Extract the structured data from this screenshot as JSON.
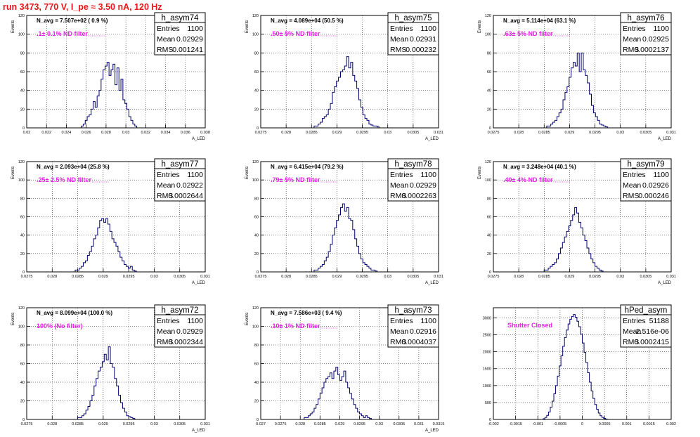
{
  "run_title": "run 3473,   770 V, I_pe ≈ 3.50 nA, 120 Hz",
  "chart_data": [
    {
      "type": "histogram",
      "name": "h_asym74",
      "annotation": "N_avg = 7.507e+02 ( 0.9 %)",
      "filter": ".1± 0.1% ND filter",
      "stats": {
        "entries": "1100",
        "mean": "0.02929",
        "rms": "0.001241"
      },
      "stat_labels": {
        "entries": "Entries",
        "mean": "Mean",
        "rms": "RMS"
      },
      "ylabel": "Events",
      "xlabel": "A_LED",
      "xlim": [
        0.02,
        0.038
      ],
      "ylim": [
        0,
        120
      ],
      "xticks": [
        0.02,
        0.022,
        0.024,
        0.026,
        0.028,
        0.03,
        0.032,
        0.034,
        0.036,
        0.038
      ],
      "xtick_labels": [
        "0.02",
        "0.022",
        "0.024",
        "0.026",
        "0.028",
        "0.03",
        "0.032",
        "0.034",
        "0.036",
        "0.038"
      ],
      "yticks": [
        0,
        20,
        40,
        60,
        80,
        100,
        120
      ],
      "ytick_labels": [
        "0",
        "20",
        "40",
        "60",
        "80",
        "100",
        "120"
      ],
      "bins": {
        "start": 0.0255,
        "width": 0.0002,
        "counts": [
          2,
          4,
          8,
          12,
          14,
          20,
          28,
          22,
          34,
          40,
          52,
          62,
          66,
          70,
          56,
          62,
          68,
          46,
          64,
          40,
          52,
          30,
          26,
          20,
          12,
          8,
          4,
          2
        ]
      }
    },
    {
      "type": "histogram",
      "name": "h_asym75",
      "annotation": "N_avg = 4.089e+04 (50.5 %)",
      "filter": ".50± 5% ND filter",
      "stats": {
        "entries": "1100",
        "mean": "0.02931",
        "rms": "0.000232"
      },
      "stat_labels": {
        "entries": "Entries",
        "mean": "Mean",
        "rms": "RMS"
      },
      "ylabel": "Events",
      "xlabel": "A_LED",
      "xlim": [
        0.0275,
        0.031
      ],
      "ylim": [
        0,
        120
      ],
      "xticks": [
        0.0275,
        0.028,
        0.0285,
        0.029,
        0.0295,
        0.03,
        0.0305,
        0.031
      ],
      "xtick_labels": [
        "0.0275",
        "0.028",
        "0.0285",
        "0.029",
        "0.0295",
        "0.03",
        "0.0305",
        "0.031"
      ],
      "yticks": [
        0,
        20,
        40,
        60,
        80,
        100,
        120
      ],
      "ytick_labels": [
        "0",
        "20",
        "40",
        "60",
        "80",
        "100",
        "120"
      ],
      "bins": {
        "start": 0.02855,
        "width": 4e-05,
        "counts": [
          2,
          2,
          4,
          6,
          10,
          12,
          14,
          20,
          26,
          38,
          44,
          50,
          54,
          60,
          62,
          66,
          76,
          64,
          70,
          56,
          50,
          42,
          30,
          22,
          14,
          10,
          8,
          4,
          3,
          2,
          2,
          1
        ]
      }
    },
    {
      "type": "histogram",
      "name": "h_asym76",
      "annotation": "N_avg = 5.114e+04 (63.1 %)",
      "filter": ".63± 5% ND filter",
      "stats": {
        "entries": "1100",
        "mean": "0.02925",
        "rms": "0.0002137"
      },
      "stat_labels": {
        "entries": "Entries",
        "mean": "Mean",
        "rms": "RMS"
      },
      "ylabel": "Events",
      "xlabel": "A_LED",
      "xlim": [
        0.0275,
        0.031
      ],
      "ylim": [
        0,
        120
      ],
      "xticks": [
        0.0275,
        0.028,
        0.0285,
        0.029,
        0.0295,
        0.03,
        0.0305,
        0.031
      ],
      "xtick_labels": [
        "0.0275",
        "0.028",
        "0.0285",
        "0.029",
        "0.0295",
        "0.03",
        "0.0305",
        "0.031"
      ],
      "yticks": [
        0,
        20,
        40,
        60,
        80,
        100,
        120
      ],
      "ytick_labels": [
        "0",
        "20",
        "40",
        "60",
        "80",
        "100",
        "120"
      ],
      "bins": {
        "start": 0.02855,
        "width": 4e-05,
        "counts": [
          2,
          2,
          4,
          6,
          8,
          12,
          16,
          20,
          30,
          38,
          44,
          54,
          64,
          70,
          66,
          80,
          60,
          80,
          62,
          56,
          48,
          36,
          24,
          16,
          12,
          8,
          4,
          3,
          2,
          1
        ]
      }
    },
    {
      "type": "histogram",
      "name": "h_asym77",
      "annotation": "N_avg = 2.093e+04 (25.8 %)",
      "filter": ".25± 2.5% ND filter",
      "stats": {
        "entries": "1100",
        "mean": "0.02922",
        "rms": "0.0002644"
      },
      "stat_labels": {
        "entries": "Entries",
        "mean": "Mean",
        "rms": "RMS"
      },
      "ylabel": "Events",
      "xlabel": "A_LED",
      "xlim": [
        0.0275,
        0.031
      ],
      "ylim": [
        0,
        120
      ],
      "xticks": [
        0.0275,
        0.028,
        0.0285,
        0.029,
        0.0295,
        0.03,
        0.0305,
        0.031
      ],
      "xtick_labels": [
        "0.0275",
        "0.028",
        "0.0285",
        "0.029",
        "0.0295",
        "0.03",
        "0.0305",
        "0.031"
      ],
      "yticks": [
        0,
        20,
        40,
        60,
        80,
        100,
        120
      ],
      "ytick_labels": [
        "0",
        "20",
        "40",
        "60",
        "80",
        "100",
        "120"
      ],
      "bins": {
        "start": 0.02845,
        "width": 4e-05,
        "counts": [
          2,
          2,
          4,
          6,
          10,
          12,
          18,
          22,
          28,
          36,
          40,
          48,
          56,
          58,
          54,
          58,
          52,
          44,
          36,
          32,
          28,
          22,
          16,
          12,
          8,
          6,
          4,
          6,
          2,
          1
        ]
      }
    },
    {
      "type": "histogram",
      "name": "h_asym78",
      "annotation": "N_avg = 6.415e+04 (79.2 %)",
      "filter": ".79± 5% ND filter",
      "stats": {
        "entries": "1100",
        "mean": "0.02929",
        "rms": "0.0002263"
      },
      "stat_labels": {
        "entries": "Entries",
        "mean": "Mean",
        "rms": "RMS"
      },
      "ylabel": "Events",
      "xlabel": "A_LED",
      "xlim": [
        0.0275,
        0.031
      ],
      "ylim": [
        0,
        120
      ],
      "xticks": [
        0.0275,
        0.028,
        0.0285,
        0.029,
        0.0295,
        0.03,
        0.0305,
        0.031
      ],
      "xtick_labels": [
        "0.0275",
        "0.028",
        "0.0285",
        "0.029",
        "0.0295",
        "0.03",
        "0.0305",
        "0.031"
      ],
      "yticks": [
        0,
        20,
        40,
        60,
        80,
        100,
        120
      ],
      "ytick_labels": [
        "0",
        "20",
        "40",
        "60",
        "80",
        "100",
        "120"
      ],
      "bins": {
        "start": 0.02855,
        "width": 4e-05,
        "counts": [
          2,
          2,
          4,
          6,
          8,
          12,
          16,
          22,
          30,
          40,
          48,
          56,
          62,
          70,
          74,
          66,
          70,
          58,
          56,
          46,
          36,
          28,
          20,
          14,
          10,
          8,
          6,
          4,
          2,
          2,
          1
        ]
      }
    },
    {
      "type": "histogram",
      "name": "h_asym79",
      "annotation": "N_avg = 3.248e+04 (40.1 %)",
      "filter": ".40± 4% ND filter",
      "stats": {
        "entries": "1100",
        "mean": "0.02926",
        "rms": "0.000246"
      },
      "stat_labels": {
        "entries": "Entries",
        "mean": "Mean",
        "rms": "RMS"
      },
      "ylabel": "Events",
      "xlabel": "A_LED",
      "xlim": [
        0.0275,
        0.031
      ],
      "ylim": [
        0,
        120
      ],
      "xticks": [
        0.0275,
        0.028,
        0.0285,
        0.029,
        0.0295,
        0.03,
        0.0305,
        0.031
      ],
      "xtick_labels": [
        "0.0275",
        "0.028",
        "0.0285",
        "0.029",
        "0.0295",
        "0.03",
        "0.0305",
        "0.031"
      ],
      "yticks": [
        0,
        20,
        40,
        60,
        80,
        100,
        120
      ],
      "ytick_labels": [
        "0",
        "20",
        "40",
        "60",
        "80",
        "100",
        "120"
      ],
      "bins": {
        "start": 0.0285,
        "width": 4e-05,
        "counts": [
          2,
          2,
          4,
          6,
          8,
          10,
          14,
          20,
          26,
          32,
          38,
          44,
          50,
          56,
          62,
          70,
          64,
          54,
          48,
          40,
          34,
          26,
          20,
          14,
          10,
          6,
          4,
          2,
          1
        ]
      }
    },
    {
      "type": "histogram",
      "name": "h_asym72",
      "annotation": "N_avg = 8.099e+04 (100.0 %)",
      "filter": "100% (No filter)",
      "stats": {
        "entries": "1100",
        "mean": "0.02929",
        "rms": "0.0002344"
      },
      "stat_labels": {
        "entries": "Entries",
        "mean": "Mean",
        "rms": "RMS"
      },
      "ylabel": "Events",
      "xlabel": "A_LED",
      "xlim": [
        0.0275,
        0.031
      ],
      "ylim": [
        0,
        120
      ],
      "xticks": [
        0.0275,
        0.028,
        0.0285,
        0.029,
        0.0295,
        0.03,
        0.0305,
        0.031
      ],
      "xtick_labels": [
        "0.0275",
        "0.028",
        "0.0285",
        "0.029",
        "0.0295",
        "0.03",
        "0.0305",
        "0.031"
      ],
      "yticks": [
        0,
        20,
        40,
        60,
        80,
        100,
        120
      ],
      "ytick_labels": [
        "0",
        "20",
        "40",
        "60",
        "80",
        "100",
        "120"
      ],
      "bins": {
        "start": 0.0285,
        "width": 4e-05,
        "counts": [
          2,
          2,
          4,
          6,
          10,
          14,
          20,
          26,
          36,
          44,
          52,
          56,
          62,
          70,
          64,
          78,
          60,
          56,
          44,
          36,
          26,
          18,
          12,
          8,
          4,
          3,
          2,
          1
        ]
      }
    },
    {
      "type": "histogram",
      "name": "h_asym73",
      "annotation": "N_avg = 7.586e+03 ( 9.4 %)",
      "filter": ".10± 1% ND filter",
      "stats": {
        "entries": "1100",
        "mean": "0.02916",
        "rms": "0.0004037"
      },
      "stat_labels": {
        "entries": "Entries",
        "mean": "Mean",
        "rms": "RMS"
      },
      "ylabel": "Events",
      "xlabel": "A_LED",
      "xlim": [
        0.027,
        0.0315
      ],
      "ylim": [
        0,
        120
      ],
      "xticks": [
        0.027,
        0.0275,
        0.028,
        0.0285,
        0.029,
        0.0295,
        0.03,
        0.0305,
        0.031,
        0.0315
      ],
      "xtick_labels": [
        "0.027",
        "0.0275",
        "0.028",
        "0.0285",
        "0.029",
        "0.0295",
        "0.03",
        "0.0305",
        "0.031",
        "0.0315"
      ],
      "yticks": [
        0,
        20,
        40,
        60,
        80,
        100,
        120
      ],
      "ytick_labels": [
        "0",
        "20",
        "40",
        "60",
        "80",
        "100",
        "120"
      ],
      "bins": {
        "start": 0.0281,
        "width": 5e-05,
        "counts": [
          2,
          2,
          4,
          6,
          8,
          12,
          16,
          22,
          28,
          34,
          40,
          44,
          46,
          50,
          44,
          52,
          56,
          48,
          42,
          46,
          52,
          40,
          34,
          28,
          22,
          16,
          12,
          8,
          6,
          4,
          2,
          4,
          2,
          1
        ]
      }
    },
    {
      "type": "histogram",
      "name": "hPed_asym",
      "annotation": "",
      "filter": "Shutter Closed",
      "stats": {
        "entries": "51188",
        "mean": "-2.516e-06",
        "rms": "0.0002415"
      },
      "stat_labels": {
        "entries": "Entries",
        "mean": "Mean",
        "rms": "RMS"
      },
      "ylabel": "",
      "xlabel": "",
      "xlim": [
        -0.002,
        0.002
      ],
      "ylim": [
        0,
        3300
      ],
      "xticks": [
        -0.002,
        -0.0015,
        -0.001,
        -0.0005,
        0,
        0.0005,
        0.001,
        0.0015,
        0.002
      ],
      "xtick_labels": [
        "-0.002",
        "-0.0015",
        "-0.001",
        "-0.0005",
        "0",
        "0.0005",
        "0.001",
        "0.0015",
        "0.002"
      ],
      "yticks": [
        0,
        500,
        1000,
        1500,
        2000,
        2500,
        3000
      ],
      "ytick_labels": [
        "0",
        "500",
        "1000",
        "1500",
        "2000",
        "2500",
        "3000"
      ],
      "bins": {
        "start": -0.00088,
        "width": 4e-05,
        "counts": [
          20,
          60,
          120,
          220,
          360,
          540,
          760,
          1000,
          1280,
          1580,
          1880,
          2160,
          2420,
          2640,
          2820,
          2960,
          3040,
          3100,
          3020,
          2900,
          2740,
          2520,
          2260,
          1980,
          1680,
          1380,
          1100,
          840,
          620,
          440,
          300,
          190,
          110,
          60,
          30,
          12
        ]
      }
    }
  ]
}
